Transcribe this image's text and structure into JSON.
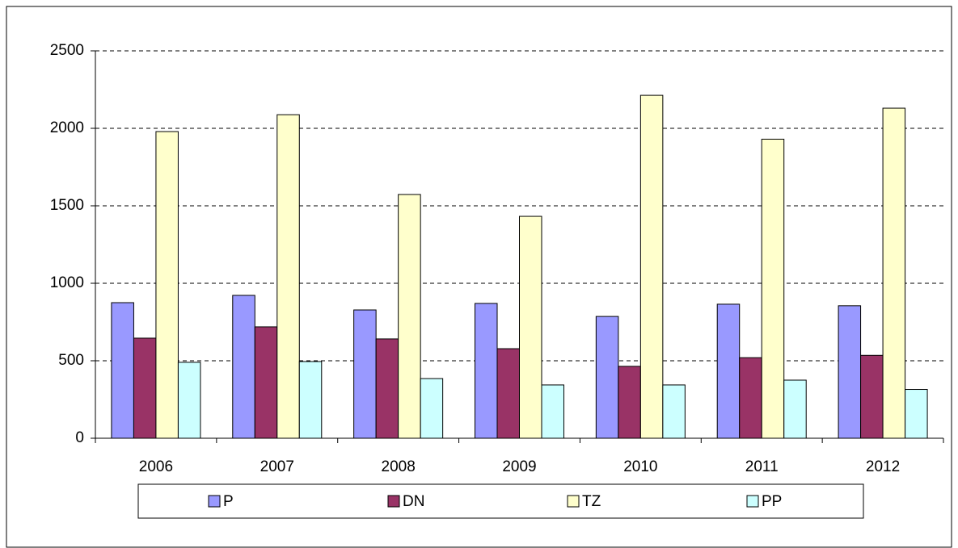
{
  "chart_data": {
    "type": "bar",
    "categories": [
      "2006",
      "2007",
      "2008",
      "2009",
      "2010",
      "2011",
      "2012"
    ],
    "series": [
      {
        "name": "P",
        "color": "#9999ff",
        "values": [
          875,
          922,
          828,
          870,
          786,
          865,
          855
        ]
      },
      {
        "name": "DN",
        "color": "#993366",
        "values": [
          646,
          719,
          641,
          578,
          464,
          520,
          535
        ]
      },
      {
        "name": "TZ",
        "color": "#ffffcc",
        "values": [
          1979,
          2088,
          1573,
          1432,
          2213,
          1930,
          2130
        ]
      },
      {
        "name": "PP",
        "color": "#ccffff",
        "values": [
          490,
          495,
          385,
          344,
          344,
          375,
          315
        ]
      }
    ],
    "ylim": [
      0,
      2500
    ],
    "yticks": [
      0,
      500,
      1000,
      1500,
      2000,
      2500
    ],
    "grid": true,
    "legend": "bottom"
  }
}
